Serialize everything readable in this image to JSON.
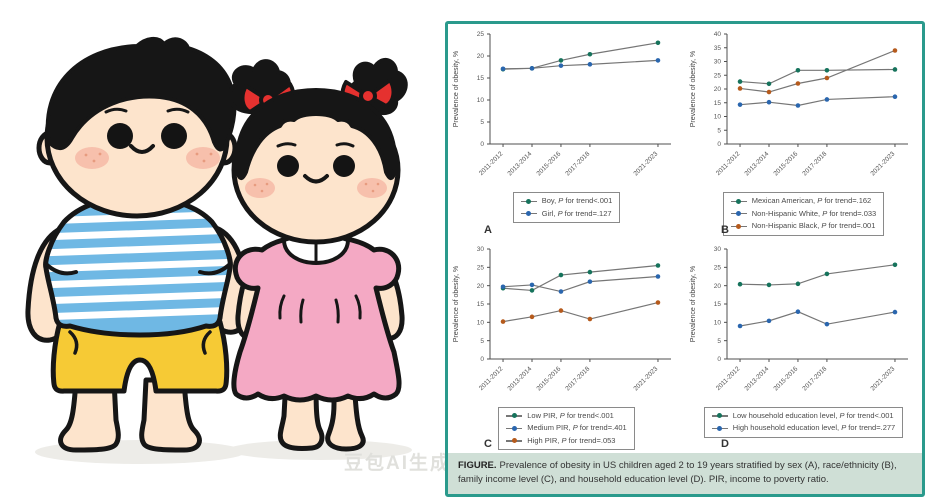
{
  "watermark": "豆包AI生成",
  "colors": {
    "panel_border": "#2a9a8c",
    "caption_bg": "#cfdfd6",
    "line": "#767676",
    "axis": "#4f4f4f",
    "tick_text": "#555555",
    "series_green": "#16735c",
    "series_blue": "#2a66ae",
    "series_orange": "#b55a1c"
  },
  "figure": {
    "caption_prefix": "FIGURE.",
    "caption_text": "Prevalence of obesity in US children aged 2 to 19 years stratified by sex (A), race/ethnicity (B), family income level (C), and household education level (D). PIR, income to poverty ratio."
  },
  "chart_data": [
    {
      "panel_label": "A",
      "type": "line",
      "ylabel": "Prevalence of obesity, %",
      "ylim": [
        0,
        25
      ],
      "ytick_step": 5,
      "categories": [
        "2011-2012",
        "2013-2014",
        "2015-2016",
        "2017-2018",
        "2021-2023"
      ],
      "x_positions": [
        0,
        2,
        4,
        6,
        10.7
      ],
      "x_range": [
        -0.9,
        11.6
      ],
      "grid": false,
      "legend_position": "below",
      "series": [
        {
          "name": "Boy",
          "legend": "Boy, P for trend<.001",
          "color": "#16735c",
          "values": [
            17.0,
            17.2,
            19.0,
            20.4,
            23.0
          ]
        },
        {
          "name": "Girl",
          "legend": "Girl, P for trend=.127",
          "color": "#2a66ae",
          "values": [
            17.1,
            17.2,
            17.8,
            18.1,
            19.0
          ]
        }
      ]
    },
    {
      "panel_label": "B",
      "type": "line",
      "ylabel": "Prevalence of obesity, %",
      "ylim": [
        0,
        40
      ],
      "ytick_step": 5,
      "categories": [
        "2011-2012",
        "2013-2014",
        "2015-2016",
        "2017-2018",
        "2021-2023"
      ],
      "x_positions": [
        0,
        2,
        4,
        6,
        10.7
      ],
      "x_range": [
        -0.9,
        11.6
      ],
      "grid": false,
      "legend_position": "below",
      "series": [
        {
          "name": "Mexican American",
          "legend": "Mexican American, P for trend=.162",
          "color": "#16735c",
          "values": [
            22.7,
            21.9,
            26.8,
            26.8,
            27.1
          ]
        },
        {
          "name": "Non-Hispanic White",
          "legend": "Non-Hispanic White, P for trend=.033",
          "color": "#2a66ae",
          "values": [
            14.3,
            15.2,
            14.0,
            16.2,
            17.2
          ]
        },
        {
          "name": "Non-Hispanic Black",
          "legend": "Non-Hispanic Black, P for trend=.001",
          "color": "#b55a1c",
          "values": [
            20.2,
            18.9,
            22.0,
            24.0,
            34.0
          ]
        }
      ]
    },
    {
      "panel_label": "C",
      "type": "line",
      "ylabel": "Prevalence of obesity, %",
      "ylim": [
        0,
        30
      ],
      "ytick_step": 5,
      "categories": [
        "2011-2012",
        "2013-2014",
        "2015-2016",
        "2017-2018",
        "2021-2023"
      ],
      "x_positions": [
        0,
        2,
        4,
        6,
        10.7
      ],
      "x_range": [
        -0.9,
        11.6
      ],
      "grid": false,
      "legend_position": "below",
      "series": [
        {
          "name": "Low PIR",
          "legend": "Low PIR, P for trend<.001",
          "color": "#16735c",
          "values": [
            19.3,
            18.7,
            22.9,
            23.7,
            25.5
          ]
        },
        {
          "name": "Medium PIR",
          "legend": "Medium PIR, P for trend=.401",
          "color": "#2a66ae",
          "values": [
            19.7,
            20.2,
            18.4,
            21.1,
            22.5
          ]
        },
        {
          "name": "High PIR",
          "legend": "High PIR, P for trend=.053",
          "color": "#b55a1c",
          "values": [
            10.2,
            11.5,
            13.2,
            10.9,
            15.4
          ]
        }
      ]
    },
    {
      "panel_label": "D",
      "type": "line",
      "ylabel": "Prevalence of obesity, %",
      "ylim": [
        0,
        30
      ],
      "ytick_step": 5,
      "categories": [
        "2011-2012",
        "2013-2014",
        "2015-2016",
        "2017-2018",
        "2021-2023"
      ],
      "x_positions": [
        0,
        2,
        4,
        6,
        10.7
      ],
      "x_range": [
        -0.9,
        11.6
      ],
      "grid": false,
      "legend_position": "below",
      "series": [
        {
          "name": "Low household education level",
          "legend": "Low household education level, P for trend<.001",
          "color": "#16735c",
          "values": [
            20.4,
            20.2,
            20.5,
            23.2,
            25.7
          ]
        },
        {
          "name": "High household education level",
          "legend": "High household education level, P for trend=.277",
          "color": "#2a66ae",
          "values": [
            9.0,
            10.4,
            12.9,
            9.5,
            12.8
          ]
        }
      ]
    }
  ]
}
